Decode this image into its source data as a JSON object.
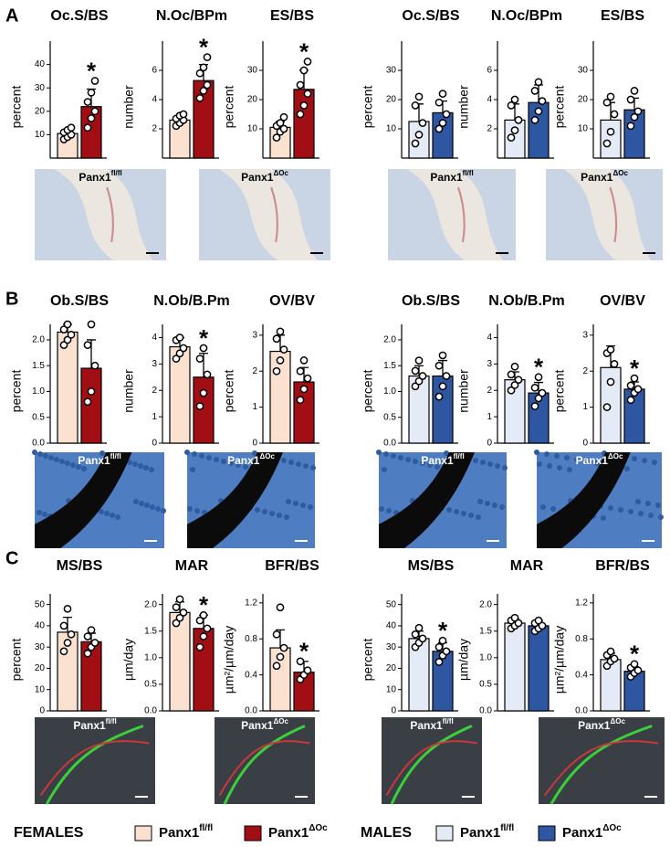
{
  "panels": [
    "A",
    "B",
    "C"
  ],
  "chart_data": [
    {
      "type": "bar",
      "title": "Oc.S/BS",
      "ylabel": "percent",
      "values": [
        10.5,
        22
      ],
      "errors": [
        1.5,
        7.5
      ],
      "points": [
        [
          8,
          9,
          10,
          11,
          12,
          13
        ],
        [
          13,
          17,
          20,
          24,
          28,
          33
        ]
      ],
      "significance": [
        null,
        "*"
      ],
      "colors": [
        "#fbe1cf",
        "#a10f14"
      ],
      "ylim": [
        0,
        50
      ],
      "yticks": [
        10,
        20,
        30,
        40
      ]
    },
    {
      "type": "bar",
      "title": "N.Oc/BPm",
      "ylabel": "number",
      "values": [
        2.6,
        5.3
      ],
      "errors": [
        0.3,
        1.1
      ],
      "points": [
        [
          2.2,
          2.4,
          2.6,
          2.7,
          2.9,
          3.0
        ],
        [
          4.1,
          4.6,
          5.0,
          5.8,
          6.2,
          6.9
        ]
      ],
      "significance": [
        null,
        "*"
      ],
      "colors": [
        "#fbe1cf",
        "#a10f14"
      ],
      "ylim": [
        0,
        8
      ],
      "yticks": [
        2,
        4,
        6
      ]
    },
    {
      "type": "bar",
      "title": "ES/BS",
      "ylabel": "percent",
      "values": [
        10.5,
        23.5
      ],
      "errors": [
        2,
        6.5
      ],
      "points": [
        [
          7,
          9,
          10,
          11,
          12,
          14
        ],
        [
          15,
          18,
          22,
          25,
          30,
          33
        ]
      ],
      "significance": [
        null,
        "*"
      ],
      "colors": [
        "#fbe1cf",
        "#a10f14"
      ],
      "ylim": [
        0,
        40
      ],
      "yticks": [
        10,
        20,
        30
      ]
    },
    {
      "type": "bar",
      "title": "Oc.S/BS",
      "ylabel": "percent",
      "values": [
        12.5,
        15.5
      ],
      "errors": [
        6,
        4
      ],
      "points": [
        [
          5,
          8,
          12,
          18,
          21
        ],
        [
          10,
          12,
          15,
          19,
          22
        ]
      ],
      "significance": [
        null,
        null
      ],
      "colors": [
        "#e4ebf6",
        "#2f56a1"
      ],
      "ylim": [
        0,
        40
      ],
      "yticks": [
        10,
        20,
        30
      ]
    },
    {
      "type": "bar",
      "title": "N.Oc/BPm",
      "ylabel": "number",
      "values": [
        2.6,
        3.8
      ],
      "errors": [
        1.1,
        1.2
      ],
      "points": [
        [
          1.4,
          1.9,
          2.6,
          3.6,
          4.0
        ],
        [
          2.6,
          3.2,
          3.9,
          4.6,
          5.2
        ]
      ],
      "significance": [
        null,
        null
      ],
      "colors": [
        "#e4ebf6",
        "#2f56a1"
      ],
      "ylim": [
        0,
        8
      ],
      "yticks": [
        2,
        4,
        6
      ]
    },
    {
      "type": "bar",
      "title": "ES/BS",
      "ylabel": "percent",
      "values": [
        13,
        16.5
      ],
      "errors": [
        6,
        4
      ],
      "points": [
        [
          5,
          9,
          15,
          19,
          21
        ],
        [
          11,
          14,
          16,
          20,
          23
        ]
      ],
      "significance": [
        null,
        null
      ],
      "colors": [
        "#e4ebf6",
        "#2f56a1"
      ],
      "ylim": [
        0,
        40
      ],
      "yticks": [
        10,
        20,
        30
      ]
    },
    {
      "type": "bar",
      "title": "Ob.S/BS",
      "ylabel": "percent",
      "values": [
        2.15,
        1.45
      ],
      "errors": [
        0.15,
        0.55
      ],
      "points": [
        [
          1.9,
          2.0,
          2.1,
          2.2,
          2.3
        ],
        [
          0.8,
          1.0,
          1.5,
          1.9,
          2.3
        ]
      ],
      "significance": [
        null,
        null
      ],
      "colors": [
        "#fbe1cf",
        "#a10f14"
      ],
      "ylim": [
        0,
        2.3
      ],
      "yticks": [
        {
          "value": 0,
          "label": "0.0"
        },
        0.5,
        {
          "value": 1,
          "label": "1.0"
        },
        1.5,
        {
          "value": 2,
          "label": "2.0"
        }
      ]
    },
    {
      "type": "bar",
      "title": "N.Ob/B.Pm",
      "ylabel": "number",
      "values": [
        3.65,
        2.5
      ],
      "errors": [
        0.35,
        0.9
      ],
      "points": [
        [
          3.2,
          3.4,
          3.6,
          3.9,
          4.0
        ],
        [
          1.4,
          1.9,
          2.6,
          3.2,
          3.6
        ]
      ],
      "significance": [
        null,
        "*"
      ],
      "colors": [
        "#fbe1cf",
        "#a10f14"
      ],
      "ylim": [
        0,
        4.5
      ],
      "yticks": [
        0,
        1,
        2,
        3,
        4
      ]
    },
    {
      "type": "bar",
      "title": "OV/BV",
      "ylabel": "percent",
      "values": [
        2.55,
        1.7
      ],
      "errors": [
        0.45,
        0.4
      ],
      "points": [
        [
          2.0,
          2.3,
          2.6,
          2.9,
          3.1
        ],
        [
          1.2,
          1.5,
          1.8,
          2.0,
          2.3
        ]
      ],
      "significance": [
        null,
        null
      ],
      "colors": [
        "#fbe1cf",
        "#a10f14"
      ],
      "ylim": [
        0,
        3.3
      ],
      "yticks": [
        0,
        1,
        2,
        3
      ]
    },
    {
      "type": "bar",
      "title": "Ob.S/BS",
      "ylabel": "percent",
      "values": [
        1.3,
        1.3
      ],
      "errors": [
        0.2,
        0.3
      ],
      "points": [
        [
          1.1,
          1.2,
          1.3,
          1.4,
          1.6
        ],
        [
          0.9,
          1.1,
          1.3,
          1.5,
          1.7
        ]
      ],
      "significance": [
        null,
        null
      ],
      "colors": [
        "#e4ebf6",
        "#2f56a1"
      ],
      "ylim": [
        0,
        2.3
      ],
      "yticks": [
        {
          "value": 0,
          "label": "0.0"
        },
        0.5,
        {
          "value": 1,
          "label": "1.0"
        },
        1.5,
        {
          "value": 2,
          "label": "2.0"
        }
      ]
    },
    {
      "type": "bar",
      "title": "N.Ob/B.Pm",
      "ylabel": "number",
      "values": [
        2.4,
        1.9
      ],
      "errors": [
        0.3,
        0.4
      ],
      "points": [
        [
          2.0,
          2.2,
          2.4,
          2.6,
          2.9
        ],
        [
          1.4,
          1.7,
          1.9,
          2.1,
          2.5
        ]
      ],
      "significance": [
        null,
        "*"
      ],
      "colors": [
        "#e4ebf6",
        "#2f56a1"
      ],
      "ylim": [
        0,
        4.5
      ],
      "yticks": [
        0,
        1,
        2,
        3,
        4
      ]
    },
    {
      "type": "bar",
      "title": "OV/BV",
      "ylabel": "percent",
      "values": [
        2.1,
        1.5
      ],
      "errors": [
        0.6,
        0.2
      ],
      "points": [
        [
          1.0,
          1.7,
          2.2,
          2.5,
          2.6
        ],
        [
          1.2,
          1.4,
          1.5,
          1.6,
          1.8
        ]
      ],
      "significance": [
        null,
        "*"
      ],
      "colors": [
        "#e4ebf6",
        "#2f56a1"
      ],
      "ylim": [
        0,
        3.3
      ],
      "yticks": [
        0,
        1,
        2,
        3
      ]
    },
    {
      "type": "bar",
      "title": "MS/BS",
      "ylabel": "percent",
      "values": [
        37,
        32.5
      ],
      "errors": [
        7,
        4
      ],
      "points": [
        [
          28,
          32,
          36,
          40,
          48
        ],
        [
          27,
          30,
          32,
          35,
          38
        ]
      ],
      "significance": [
        null,
        null
      ],
      "colors": [
        "#fbe1cf",
        "#a10f14"
      ],
      "ylim": [
        0,
        55
      ],
      "yticks": [
        0,
        10,
        20,
        30,
        40,
        50
      ]
    },
    {
      "type": "bar",
      "title": "MAR",
      "ylabel": "µm/day",
      "values": [
        1.85,
        1.55
      ],
      "errors": [
        0.2,
        0.25
      ],
      "points": [
        [
          1.65,
          1.75,
          1.85,
          1.95,
          2.1
        ],
        [
          1.2,
          1.4,
          1.55,
          1.7,
          1.8
        ]
      ],
      "significance": [
        null,
        "*"
      ],
      "colors": [
        "#fbe1cf",
        "#a10f14"
      ],
      "ylim": [
        0,
        2.2
      ],
      "yticks": [
        {
          "value": 0,
          "label": "0.0"
        },
        0.5,
        {
          "value": 1,
          "label": "1.0"
        },
        1.5,
        {
          "value": 2,
          "label": "2.0"
        }
      ]
    },
    {
      "type": "bar",
      "title": "BFR/BS",
      "ylabel": "µm²/µm/day",
      "values": [
        0.7,
        0.43
      ],
      "errors": [
        0.2,
        0.12
      ],
      "points": [
        [
          0.5,
          0.6,
          0.7,
          0.85,
          1.15
        ],
        [
          0.35,
          0.4,
          0.45,
          0.55
        ]
      ],
      "significance": [
        null,
        "*"
      ],
      "colors": [
        "#fbe1cf",
        "#a10f14"
      ],
      "ylim": [
        0,
        1.3
      ],
      "yticks": [
        {
          "value": 0,
          "label": "0.0"
        },
        0.4,
        0.8,
        1.2
      ]
    },
    {
      "type": "bar",
      "title": "MS/BS",
      "ylabel": "percent",
      "values": [
        34,
        28
      ],
      "errors": [
        3.5,
        4
      ],
      "points": [
        [
          30,
          32,
          34,
          36,
          39
        ],
        [
          23,
          26,
          28,
          30,
          33
        ]
      ],
      "significance": [
        null,
        "*"
      ],
      "colors": [
        "#e4ebf6",
        "#2f56a1"
      ],
      "ylim": [
        0,
        55
      ],
      "yticks": [
        0,
        10,
        20,
        30,
        40,
        50
      ]
    },
    {
      "type": "bar",
      "title": "MAR",
      "ylabel": "µm/day",
      "values": [
        1.65,
        1.6
      ],
      "errors": [
        0.08,
        0.1
      ],
      "points": [
        [
          1.55,
          1.6,
          1.65,
          1.7,
          1.75
        ],
        [
          1.5,
          1.55,
          1.6,
          1.65,
          1.7
        ]
      ],
      "significance": [
        null,
        null
      ],
      "colors": [
        "#e4ebf6",
        "#2f56a1"
      ],
      "ylim": [
        0,
        2.2
      ],
      "yticks": [
        {
          "value": 0,
          "label": "0.0"
        },
        0.5,
        {
          "value": 1,
          "label": "1.0"
        },
        1.5,
        {
          "value": 2,
          "label": "2.0"
        }
      ]
    },
    {
      "type": "bar",
      "title": "BFR/BS",
      "ylabel": "µm²/µm/day",
      "values": [
        0.57,
        0.44
      ],
      "errors": [
        0.07,
        0.05
      ],
      "points": [
        [
          0.5,
          0.55,
          0.58,
          0.62,
          0.66
        ],
        [
          0.38,
          0.42,
          0.45,
          0.48,
          0.52
        ]
      ],
      "significance": [
        null,
        "*"
      ],
      "colors": [
        "#e4ebf6",
        "#2f56a1"
      ],
      "ylim": [
        0,
        1.3
      ],
      "yticks": [
        {
          "value": 0,
          "label": "0.0"
        },
        0.4,
        0.8,
        1.2
      ]
    }
  ],
  "images": [
    {
      "label": "Panx1",
      "sup": "fl/fl"
    },
    {
      "label": "Panx1",
      "sup": "ΔOc"
    },
    {
      "label": "Panx1",
      "sup": "fl/fl"
    },
    {
      "label": "Panx1",
      "sup": "ΔOc"
    },
    {
      "label": "Panx1",
      "sup": "fl/fl"
    },
    {
      "label": "Panx1",
      "sup": "ΔOc"
    },
    {
      "label": "Panx1",
      "sup": "fl/fl"
    },
    {
      "label": "Panx1",
      "sup": "ΔOc"
    },
    {
      "label": "Panx1",
      "sup": "fl/fl"
    },
    {
      "label": "Panx1",
      "sup": "ΔOc"
    },
    {
      "label": "Panx1",
      "sup": "fl/fl"
    },
    {
      "label": "Panx1",
      "sup": "ΔOc"
    }
  ],
  "legend": {
    "groups": [
      {
        "label": "FEMALES",
        "entries": [
          {
            "label": "Panx1",
            "sup": "fl/fl",
            "color": "#fbe1cf"
          },
          {
            "label": "Panx1",
            "sup": "ΔOc",
            "color": "#a10f14"
          }
        ]
      },
      {
        "label": "MALES",
        "entries": [
          {
            "label": "Panx1",
            "sup": "fl/fl",
            "color": "#e4ebf6"
          },
          {
            "label": "Panx1",
            "sup": "ΔOc",
            "color": "#2f56a1"
          }
        ]
      }
    ]
  }
}
